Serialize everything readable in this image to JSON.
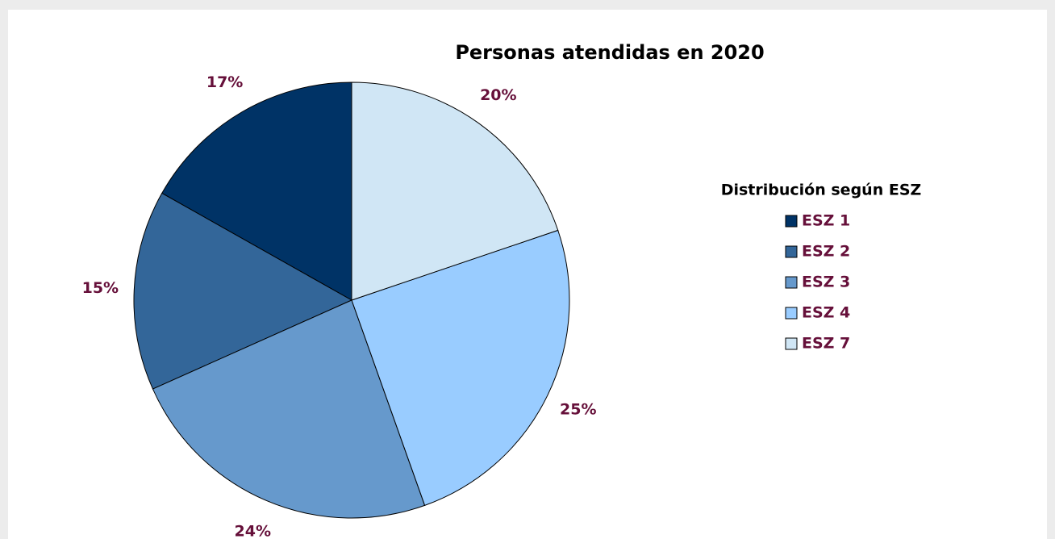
{
  "chart_data": {
    "type": "pie",
    "title": "Personas atendidas en 2020",
    "legend_title": "Distribución según ESZ",
    "categories": [
      "ESZ 1",
      "ESZ 2",
      "ESZ 3",
      "ESZ 4",
      "ESZ 7"
    ],
    "values": [
      17,
      15,
      24,
      25,
      20
    ],
    "value_labels": [
      "17%",
      "15%",
      "24%",
      "25%",
      "20%"
    ],
    "colors": [
      "#003366",
      "#336699",
      "#6699cc",
      "#99ccff",
      "#d0e6f5"
    ],
    "legend": "right"
  }
}
